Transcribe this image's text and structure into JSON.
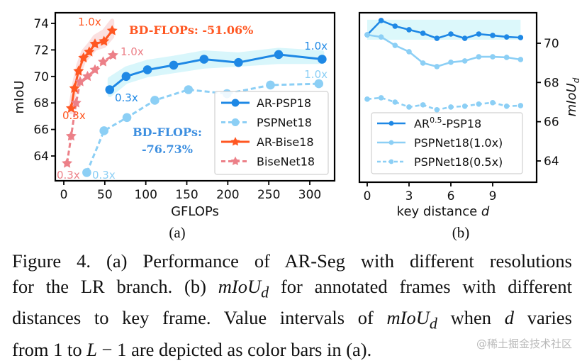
{
  "chart_data": [
    {
      "panel": "(a)",
      "type": "line",
      "xlabel": "GFLOPs",
      "ylabel": "mIoU",
      "xlim": [
        -8,
        333
      ],
      "ylim": [
        62.4,
        74.8
      ],
      "xticks": [
        0,
        50,
        100,
        150,
        200,
        250,
        300
      ],
      "yticks": [
        64,
        66,
        68,
        70,
        72,
        74
      ],
      "grid": false,
      "legend_position": "bottom-right",
      "series": [
        {
          "name": "AR-PSP18",
          "color": "#1e88e5",
          "style": "solid",
          "marker": "circle",
          "x": [
            56,
            76,
            102,
            134,
            171,
            213,
            262,
            315
          ],
          "y": [
            69.0,
            70.0,
            70.5,
            70.85,
            71.3,
            71.05,
            71.65,
            71.3
          ],
          "band_low": [
            68.6,
            69.6,
            70.1,
            70.4,
            70.75,
            70.9,
            71.1,
            71.1
          ],
          "band_high": [
            69.8,
            70.6,
            71.1,
            71.4,
            71.8,
            71.65,
            72.0,
            71.8
          ],
          "band_color": "#d8f6fb"
        },
        {
          "name": "PSPNet18",
          "color": "#8ccff5",
          "style": "dashed",
          "marker": "circle",
          "x": [
            28,
            49,
            77,
            111,
            152,
            199,
            252,
            311
          ],
          "y": [
            62.75,
            65.9,
            66.9,
            68.2,
            69.0,
            68.7,
            69.35,
            69.45
          ]
        },
        {
          "name": "AR-Bise18",
          "color": "#ff5722",
          "style": "solid",
          "marker": "star",
          "x": [
            9,
            13,
            18,
            24,
            31,
            38,
            49,
            59
          ],
          "y": [
            67.6,
            69.1,
            70.4,
            71.4,
            71.85,
            72.45,
            72.65,
            73.45
          ],
          "band_low": [
            67.3,
            68.8,
            70.1,
            71.1,
            71.6,
            72.1,
            72.3,
            73.0
          ],
          "band_high": [
            68.0,
            69.5,
            70.9,
            71.9,
            72.4,
            73.0,
            73.4,
            74.2
          ],
          "band_color": "#fbe0e0"
        },
        {
          "name": "BiseNet18",
          "color": "#ec8088",
          "style": "dashed",
          "marker": "star",
          "x": [
            4,
            9,
            15,
            20,
            29,
            38,
            48,
            60
          ],
          "y": [
            63.45,
            65.5,
            68.0,
            69.6,
            70.0,
            70.5,
            71.1,
            71.6
          ]
        }
      ],
      "annotations": [
        {
          "text": "1.0x",
          "series": "AR-Bise18",
          "color": "#ff5722"
        },
        {
          "text": "0.3x",
          "series": "AR-Bise18",
          "color": "#ff5722"
        },
        {
          "text": "1.0x",
          "series": "BiseNet18",
          "color": "#ec8088"
        },
        {
          "text": "0.3x",
          "series": "BiseNet18",
          "color": "#ec8088"
        },
        {
          "text": "1.0x",
          "series": "AR-PSP18",
          "color": "#1e88e5"
        },
        {
          "text": "0.3x",
          "series": "AR-PSP18",
          "color": "#1e88e5"
        },
        {
          "text": "1.0x",
          "series": "PSPNet18",
          "color": "#8ccff5"
        },
        {
          "text": "0.3x",
          "series": "PSPNet18",
          "color": "#8ccff5"
        },
        {
          "text": "BD-FLOPs: -51.06%",
          "color": "#ff5722"
        },
        {
          "text": "BD-FLOPs:",
          "color": "#3d8fe0"
        },
        {
          "text": "-76.73%",
          "color": "#3d8fe0"
        }
      ]
    },
    {
      "panel": "(b)",
      "type": "line",
      "xlabel": "key distance d",
      "ylabel": "mIoU_d",
      "xlim": [
        -0.6,
        11.9
      ],
      "ylim": [
        62.8,
        71.6
      ],
      "xticks": [
        0,
        3,
        6,
        9
      ],
      "yticks": [
        64,
        66,
        68,
        70
      ],
      "y_axis_side": "right",
      "grid": false,
      "legend_position": "bottom",
      "band": {
        "x": [
          0,
          11
        ],
        "y": [
          70.18,
          71.2
        ],
        "color": "#dcf8fb"
      },
      "series": [
        {
          "name": "AR0.5-PSP18",
          "color": "#1e88e5",
          "style": "solid",
          "marker": "dot",
          "x": [
            0,
            1,
            2,
            3,
            4,
            5,
            6,
            7,
            8,
            9,
            10,
            11
          ],
          "y": [
            70.43,
            71.16,
            70.87,
            70.69,
            70.51,
            70.25,
            70.47,
            70.25,
            70.47,
            70.4,
            70.32,
            70.29
          ]
        },
        {
          "name": "PSPNet18(1.0x)",
          "color": "#8ccff5",
          "style": "solid",
          "marker": "dot",
          "x": [
            0,
            1,
            2,
            3,
            4,
            5,
            6,
            7,
            8,
            9,
            10,
            11
          ],
          "y": [
            70.43,
            70.32,
            69.89,
            69.57,
            68.99,
            68.81,
            69.03,
            69.1,
            69.31,
            69.31,
            69.28,
            69.17
          ]
        },
        {
          "name": "PSPNet18(0.5x)",
          "color": "#8ccff5",
          "style": "dashed",
          "marker": "dot",
          "x": [
            0,
            1,
            2,
            3,
            4,
            5,
            6,
            7,
            8,
            9,
            10,
            11
          ],
          "y": [
            67.15,
            67.22,
            67.0,
            66.75,
            66.86,
            66.61,
            66.75,
            66.79,
            66.9,
            66.97,
            66.79,
            66.82
          ]
        }
      ]
    }
  ],
  "figure": {
    "panel_a_label": "(a)",
    "panel_b_label": "(b)",
    "legend_a": [
      "AR-PSP18",
      "PSPNet18",
      "AR-Bise18",
      "BiseNet18"
    ],
    "legend_b": {
      "ar_base": "AR",
      "ar_sup": "0.5",
      "ar_rest": "-PSP18",
      "psp10": "PSPNet18(1.0x)",
      "psp05": "PSPNet18(0.5x)"
    },
    "xlabel_a": "GFLOPs",
    "ylabel_a": "mIoU",
    "xlabel_b_text": "key distance ",
    "xlabel_b_var": "d",
    "ylabel_b_main": "mIoU",
    "ylabel_b_sub": "d"
  },
  "caption": {
    "line1": "Figure 4.  (a) Performance of AR-Seg with different resolutions",
    "line2_a": "for the LR branch. (b) ",
    "line2_math": "mIoU",
    "line2_sub": "d",
    "line2_b": " for annotated frames with different",
    "line3_a": "distances to key frame.  Value intervals of ",
    "line3_math": "mIoU",
    "line3_sub": "d",
    "line3_b": " when ",
    "line3_var": "d",
    "line3_c": " varies",
    "line4_a": "from 1 to ",
    "line4_var": "L",
    "line4_b": " − 1 are depicted as color bars in (a)."
  },
  "watermark": "@稀土掘金技术社区"
}
